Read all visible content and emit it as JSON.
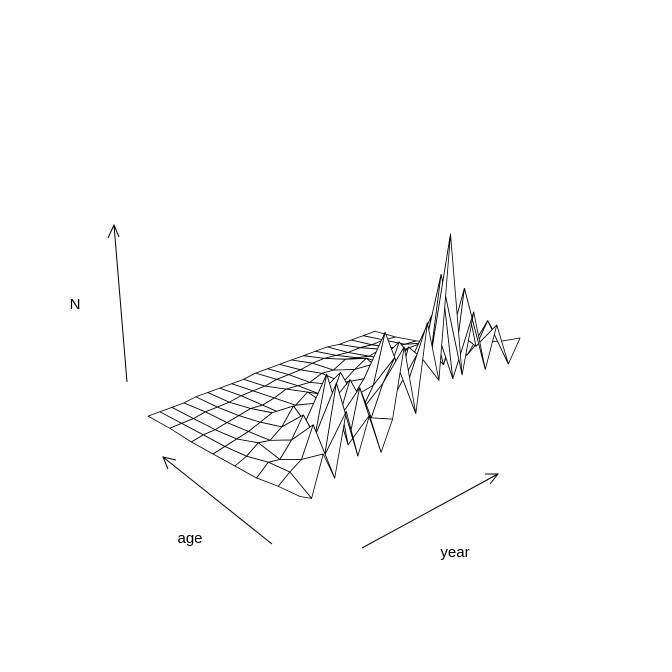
{
  "chart_data": {
    "type": "surface",
    "x_label": "year",
    "y_label": "age",
    "z_label": "N",
    "z": [
      [
        10,
        5,
        25,
        8,
        40,
        12,
        30,
        6,
        20,
        55,
        15,
        60,
        25,
        100,
        20,
        50,
        15,
        35,
        10,
        20
      ],
      [
        8,
        12,
        15,
        30,
        10,
        45,
        8,
        35,
        15,
        30,
        40,
        20,
        35,
        25,
        70,
        10,
        55,
        20,
        30,
        15
      ],
      [
        5,
        10,
        8,
        15,
        25,
        10,
        40,
        12,
        30,
        10,
        20,
        45,
        10,
        30,
        15,
        40,
        10,
        25,
        8,
        12
      ],
      [
        4,
        6,
        10,
        8,
        12,
        20,
        8,
        15,
        10,
        25,
        8,
        15,
        20,
        10,
        25,
        12,
        18,
        8,
        15,
        6
      ],
      [
        3,
        4,
        5,
        6,
        8,
        10,
        6,
        8,
        12,
        8,
        10,
        8,
        12,
        15,
        10,
        8,
        10,
        6,
        8,
        5
      ],
      [
        2,
        3,
        3,
        4,
        5,
        6,
        5,
        6,
        8,
        7,
        6,
        8,
        7,
        10,
        8,
        6,
        7,
        5,
        4,
        3
      ],
      [
        2,
        2,
        2,
        3,
        3,
        3,
        4,
        4,
        4,
        5,
        5,
        5,
        6,
        6,
        5,
        4,
        4,
        3,
        3,
        2
      ],
      [
        1,
        1,
        1,
        1,
        2,
        2,
        2,
        2,
        2,
        3,
        3,
        3,
        3,
        3,
        3,
        3,
        2,
        2,
        2,
        2
      ]
    ]
  }
}
